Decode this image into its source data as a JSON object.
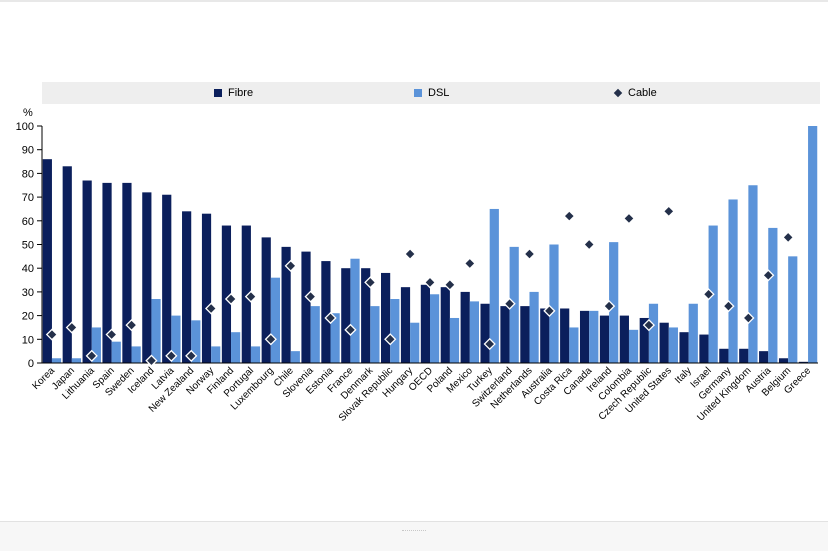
{
  "chart_data": {
    "type": "bar",
    "ylabel": "%",
    "ylim": [
      0,
      100
    ],
    "yticks": [
      "0",
      "10",
      "20",
      "30",
      "40",
      "50",
      "60",
      "70",
      "80",
      "90",
      "100"
    ],
    "legend_position": "top",
    "colors": {
      "fibre": "#0b1f5c",
      "dsl": "#5b93d9",
      "cable": "#24304a"
    },
    "categories": [
      "Korea",
      "Japan",
      "Lithuania",
      "Spain",
      "Sweden",
      "Iceland",
      "Latvia",
      "New Zealand",
      "Norway",
      "Finland",
      "Portugal",
      "Luxembourg",
      "Chile",
      "Slovenia",
      "Estonia",
      "France",
      "Denmark",
      "Slovak Republic",
      "Hungary",
      "OECD",
      "Poland",
      "Mexico",
      "Turkey",
      "Switzerland",
      "Netherlands",
      "Australia",
      "Costa Rica",
      "Canada",
      "Ireland",
      "Colombia",
      "Czech Republic",
      "United States",
      "Italy",
      "Israel",
      "Germany",
      "United Kingdom",
      "Austria",
      "Belgium",
      "Greece"
    ],
    "series": [
      {
        "name": "Fibre",
        "kind": "bar",
        "values": [
          86,
          83,
          77,
          76,
          76,
          72,
          71,
          64,
          63,
          58,
          58,
          53,
          49,
          47,
          43,
          40,
          40,
          38,
          32,
          33,
          32,
          30,
          25,
          24,
          24,
          23,
          23,
          22,
          20,
          20,
          19,
          17,
          13,
          12,
          6,
          6,
          5,
          2,
          0.5
        ]
      },
      {
        "name": "DSL",
        "kind": "bar",
        "values": [
          2,
          2,
          15,
          9,
          7,
          27,
          20,
          18,
          7,
          13,
          7,
          36,
          5,
          24,
          21,
          44,
          24,
          27,
          17,
          29,
          19,
          26,
          65,
          49,
          30,
          50,
          15,
          22,
          51,
          14,
          25,
          15,
          25,
          58,
          69,
          75,
          57,
          45,
          100
        ]
      },
      {
        "name": "Cable",
        "kind": "marker",
        "values": [
          12,
          15,
          3,
          12,
          16,
          1,
          3,
          3,
          23,
          27,
          28,
          10,
          41,
          28,
          19,
          14,
          34,
          10,
          46,
          34,
          33,
          42,
          8,
          25,
          46,
          22,
          62,
          50,
          24,
          61,
          16,
          64,
          null,
          29,
          24,
          19,
          37,
          53,
          null
        ]
      }
    ]
  }
}
